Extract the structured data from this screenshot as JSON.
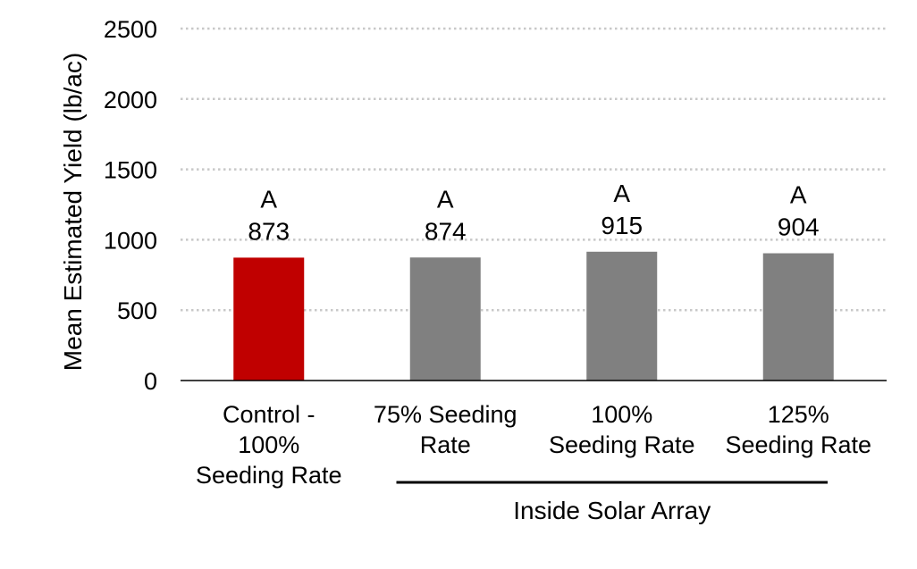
{
  "chart_data": {
    "type": "bar",
    "title": "",
    "xlabel": "",
    "ylabel": "Mean Estimated Yield (lb/ac)",
    "ylim": [
      0,
      2500
    ],
    "yticks": [
      0,
      500,
      1000,
      1500,
      2000,
      2500
    ],
    "grid": true,
    "categories": [
      [
        "Control -",
        "100%",
        "Seeding Rate"
      ],
      [
        "75% Seeding",
        "Rate"
      ],
      [
        "100%",
        "Seeding Rate"
      ],
      [
        "125%",
        "Seeding Rate"
      ]
    ],
    "values": [
      873,
      874,
      915,
      904
    ],
    "significance_letters": [
      "A",
      "A",
      "A",
      "A"
    ],
    "bar_colors": [
      "#c00000",
      "#808080",
      "#808080",
      "#808080"
    ],
    "group_label": "Inside Solar Array",
    "group_span_categories": [
      1,
      3
    ]
  }
}
